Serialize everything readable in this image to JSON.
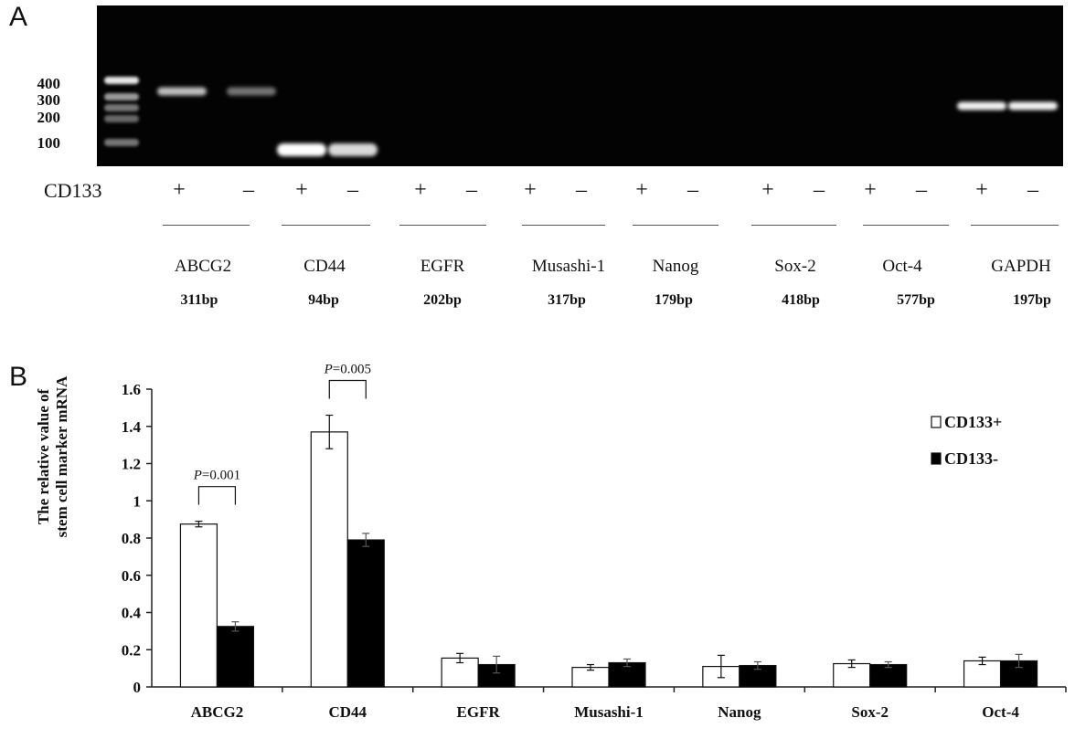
{
  "panel_a": {
    "letter": "A",
    "ladder_labels": [
      "400",
      "300",
      "200",
      "100"
    ],
    "row_label": "CD133",
    "plus": "+",
    "minus": "–",
    "genes": [
      {
        "name": "ABCG2",
        "bp": "311bp",
        "pos_band": 0.75,
        "neg_band": 0.45
      },
      {
        "name": "CD44",
        "bp": "94bp",
        "pos_band": 1.0,
        "neg_band": 0.85
      },
      {
        "name": "EGFR",
        "bp": "202bp",
        "pos_band": 0,
        "neg_band": 0
      },
      {
        "name": "Musashi-1",
        "bp": "317bp",
        "pos_band": 0,
        "neg_band": 0
      },
      {
        "name": "Nanog",
        "bp": "179bp",
        "pos_band": 0,
        "neg_band": 0
      },
      {
        "name": "Sox-2",
        "bp": "418bp",
        "pos_band": 0,
        "neg_band": 0
      },
      {
        "name": "Oct-4",
        "bp": "577bp",
        "pos_band": 0,
        "neg_band": 0
      },
      {
        "name": "GAPDH",
        "bp": "197bp",
        "pos_band": 0.95,
        "neg_band": 0.95
      }
    ]
  },
  "panel_b": {
    "letter": "B"
  },
  "chart_data": {
    "type": "bar",
    "title": "",
    "ylabel_line1": "The relative value of",
    "ylabel_line2": "stem cell marker mRNA",
    "xlabel": "",
    "ylim": [
      0,
      1.6
    ],
    "ytick_labels": [
      "0",
      "0.2",
      "0.4",
      "0.6",
      "0.8",
      "1",
      "1.2",
      "1.4",
      "1.6"
    ],
    "categories": [
      "ABCG2",
      "CD44",
      "EGFR",
      "Musashi-1",
      "Nanog",
      "Sox-2",
      "Oct-4"
    ],
    "series": [
      {
        "name": "CD133+",
        "color": "#ffffff",
        "values": [
          0.875,
          1.37,
          0.155,
          0.105,
          0.11,
          0.125,
          0.14
        ],
        "errors": [
          0.015,
          0.09,
          0.025,
          0.015,
          0.06,
          0.02,
          0.02
        ]
      },
      {
        "name": "CD133-",
        "color": "#000000",
        "values": [
          0.325,
          0.79,
          0.12,
          0.13,
          0.115,
          0.12,
          0.14
        ],
        "errors": [
          0.025,
          0.035,
          0.045,
          0.02,
          0.02,
          0.015,
          0.035
        ]
      }
    ],
    "annotations": [
      {
        "category": "ABCG2",
        "p_italic": "P",
        "text": "=0.001"
      },
      {
        "category": "CD44",
        "p_italic": "P",
        "text": "=0.005"
      }
    ],
    "legend_position": "top-right",
    "grid": false
  }
}
